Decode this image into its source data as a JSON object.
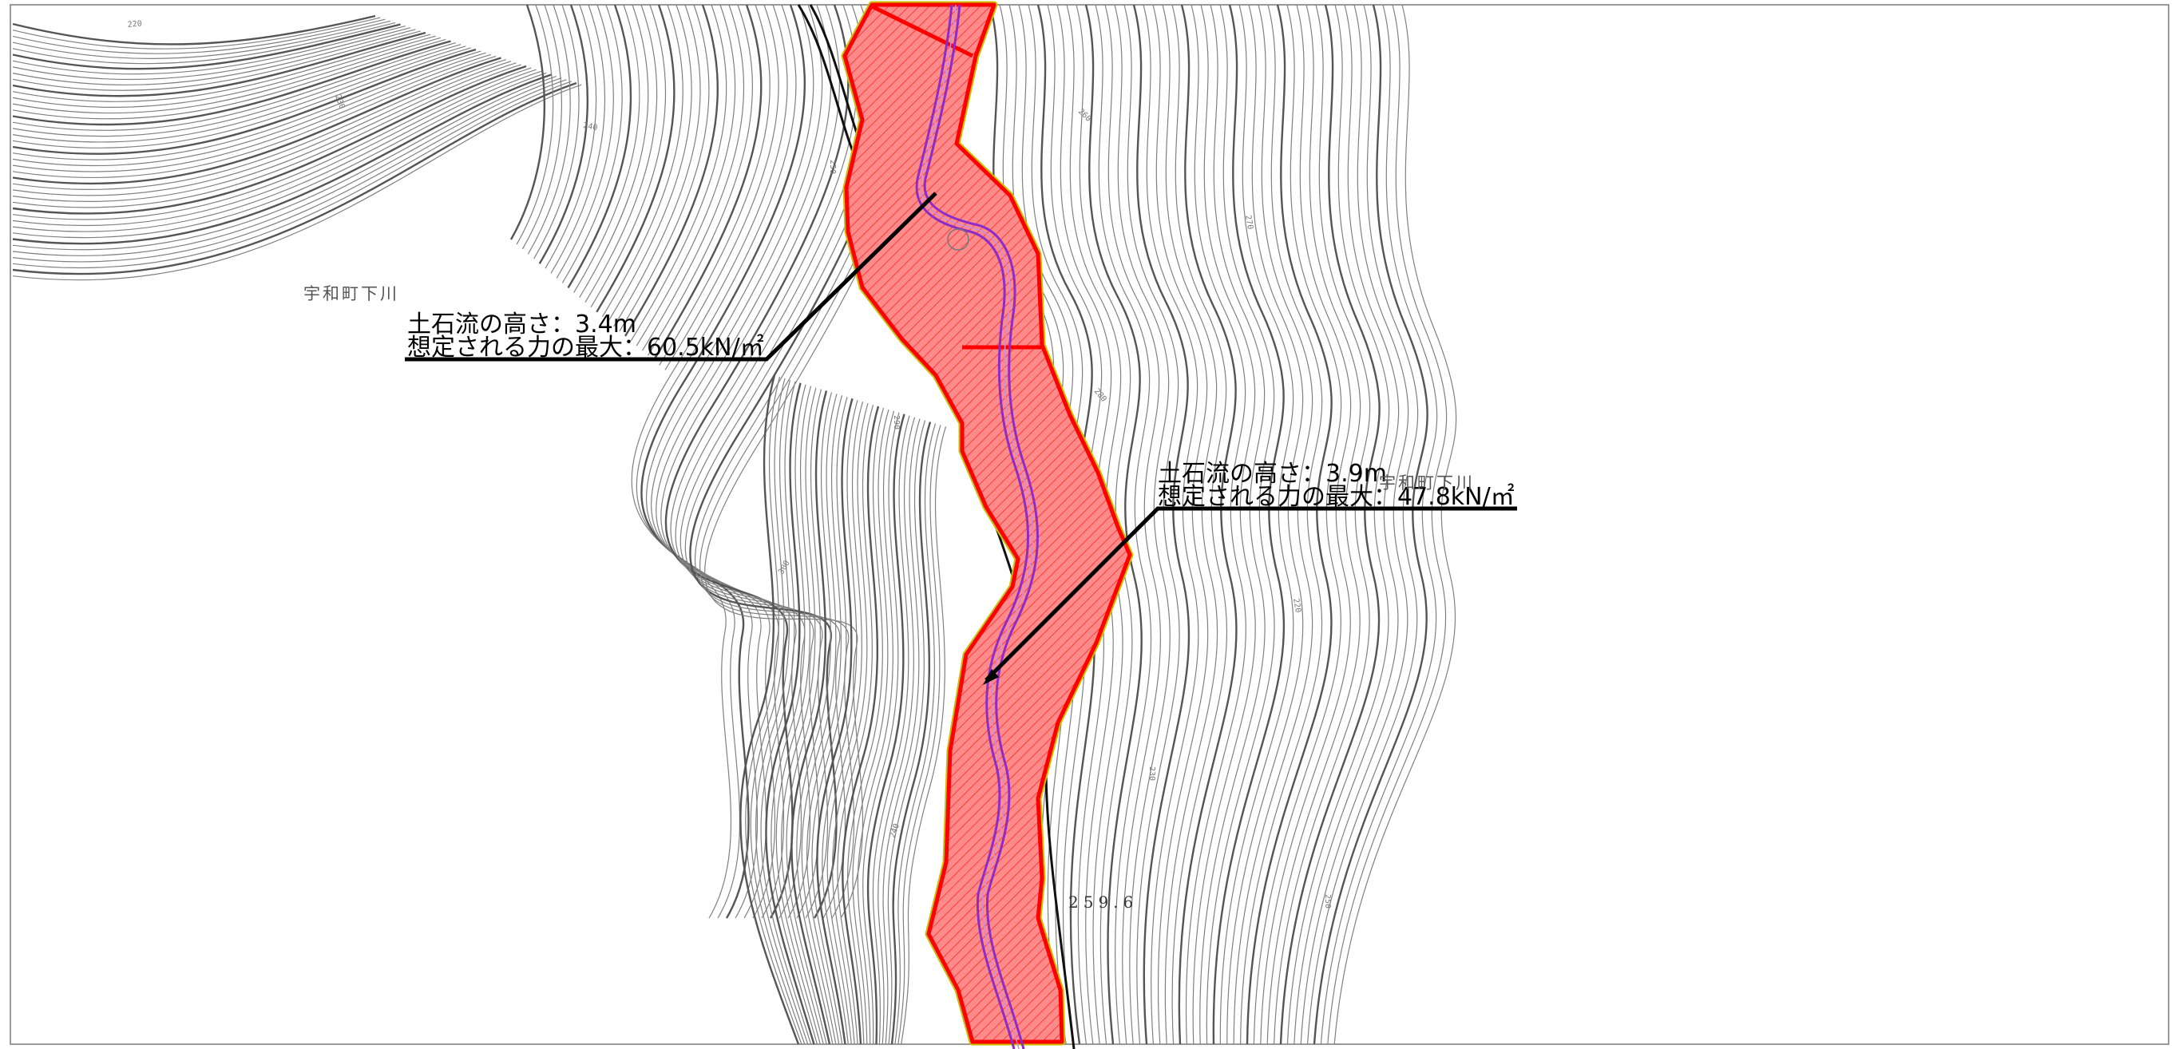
{
  "map": {
    "place_labels": [
      "宇和町下川",
      "宇和町下川"
    ],
    "elevation_label": "259.6",
    "contour_tick_labels": [
      "220",
      "230",
      "240",
      "250",
      "260",
      "270",
      "280",
      "290",
      "300"
    ],
    "callouts": [
      {
        "height_text": "土石流の高さ：3.4m",
        "force_text": "想定される力の最大：60.5kN/㎡"
      },
      {
        "height_text": "土石流の高さ：3.9m",
        "force_text": "想定される力の最大：47.8kN/㎡"
      }
    ],
    "colors": {
      "hazard_outline": "#ff0000",
      "hazard_fill": "#ff8a8a",
      "hazard_edge": "#c8c000",
      "stream": "#8c2cc9",
      "road": "#111111",
      "contour": "#808080",
      "background": "#ffffff"
    }
  }
}
